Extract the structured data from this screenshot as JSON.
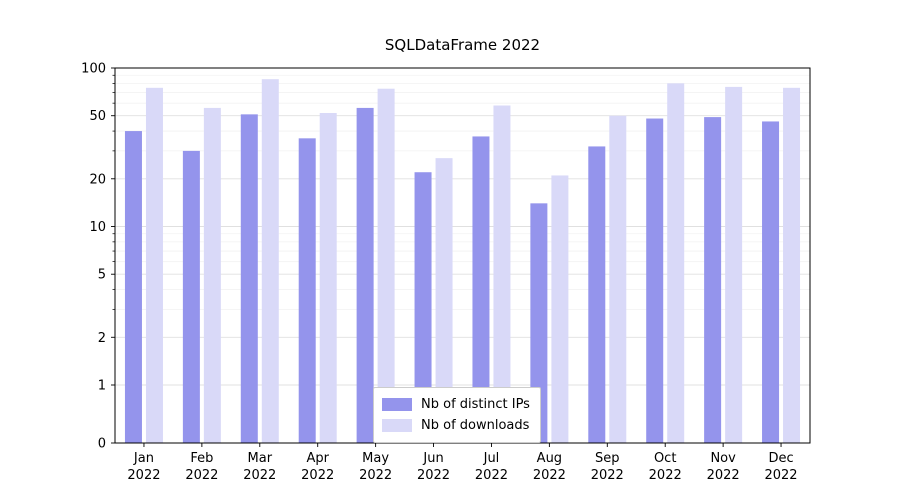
{
  "chart_data": {
    "type": "bar",
    "title": "SQLDataFrame 2022",
    "year": "2022",
    "categories": [
      "Jan",
      "Feb",
      "Mar",
      "Apr",
      "May",
      "Jun",
      "Jul",
      "Aug",
      "Sep",
      "Oct",
      "Nov",
      "Dec"
    ],
    "series": [
      {
        "name": "Nb of distinct IPs",
        "color": "#9494ec",
        "values": [
          40,
          30,
          51,
          36,
          56,
          22,
          37,
          14,
          32,
          48,
          49,
          46
        ]
      },
      {
        "name": "Nb of downloads",
        "color": "#d9d9f8",
        "values": [
          75,
          56,
          85,
          52,
          74,
          27,
          58,
          21,
          50,
          80,
          76,
          75
        ]
      }
    ],
    "yscale": "symlog",
    "yticks": [
      0,
      1,
      2,
      5,
      10,
      20,
      50,
      100
    ],
    "ylim": [
      0,
      100
    ],
    "xlabel": "",
    "ylabel": "",
    "grid": true,
    "legend_position": "lower center"
  }
}
